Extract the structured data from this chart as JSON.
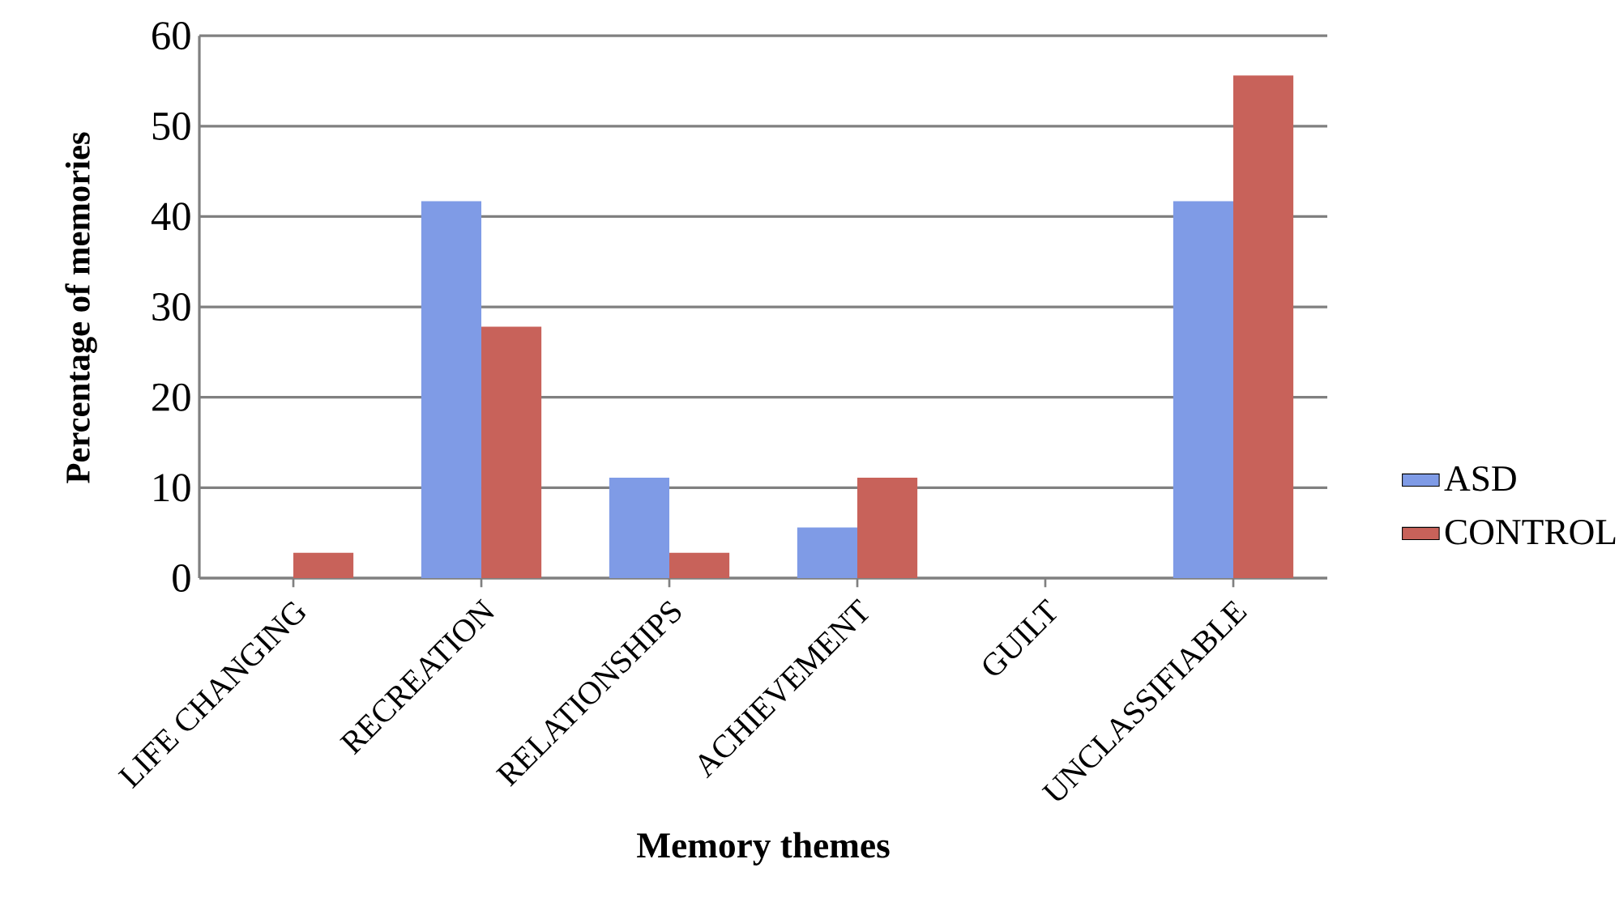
{
  "chart_data": {
    "type": "bar",
    "xlabel": "Memory themes",
    "ylabel": "Percentage of memories",
    "categories": [
      "LIFE CHANGING",
      "RECREATION",
      "RELATIONSHIPS",
      "ACHIEVEMENT",
      "GUILT",
      "UNCLASSIFIABLE"
    ],
    "series": [
      {
        "name": "ASD",
        "color": "#7f9be6",
        "values": [
          0,
          41.7,
          11.1,
          5.6,
          0,
          41.7
        ]
      },
      {
        "name": "CONTROL",
        "color": "#c8625a",
        "values": [
          2.8,
          27.8,
          2.8,
          11.1,
          0,
          55.6
        ]
      }
    ],
    "ylim": [
      0,
      60
    ],
    "yticks": [
      0,
      10,
      20,
      30,
      40,
      50,
      60
    ],
    "grid": "y",
    "legend": "right"
  }
}
